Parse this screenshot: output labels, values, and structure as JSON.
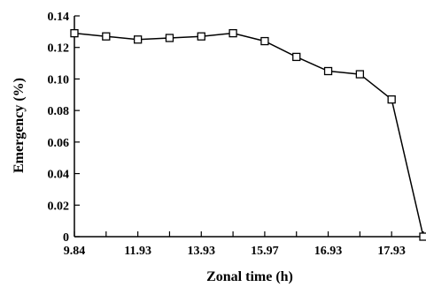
{
  "chart_data": {
    "type": "line",
    "title": "",
    "xlabel": "Zonal time (h)",
    "ylabel": "Emergency (%)",
    "x_tick_labels": [
      "9.84",
      "11.93",
      "13.93",
      "15.97",
      "16.93",
      "17.93"
    ],
    "y_tick_labels": [
      "0",
      "0.02",
      "0.04",
      "0.06",
      "0.08",
      "0.10",
      "0.12",
      "0.14"
    ],
    "ylim": [
      0,
      0.14
    ],
    "grid": false,
    "legend": "none",
    "marker": "open-square",
    "colors": {
      "line": "#000000",
      "marker_fill": "#ffffff",
      "axis": "#000000"
    },
    "series": [
      {
        "name": "",
        "x": [
          "9.84",
          "",
          "11.93",
          "",
          "13.93",
          "",
          "15.97",
          "",
          "16.93",
          "",
          "17.93",
          ""
        ],
        "values": [
          0.129,
          0.127,
          0.125,
          0.126,
          0.127,
          0.129,
          0.124,
          0.114,
          0.105,
          0.103,
          0.087,
          0.0
        ]
      }
    ]
  }
}
